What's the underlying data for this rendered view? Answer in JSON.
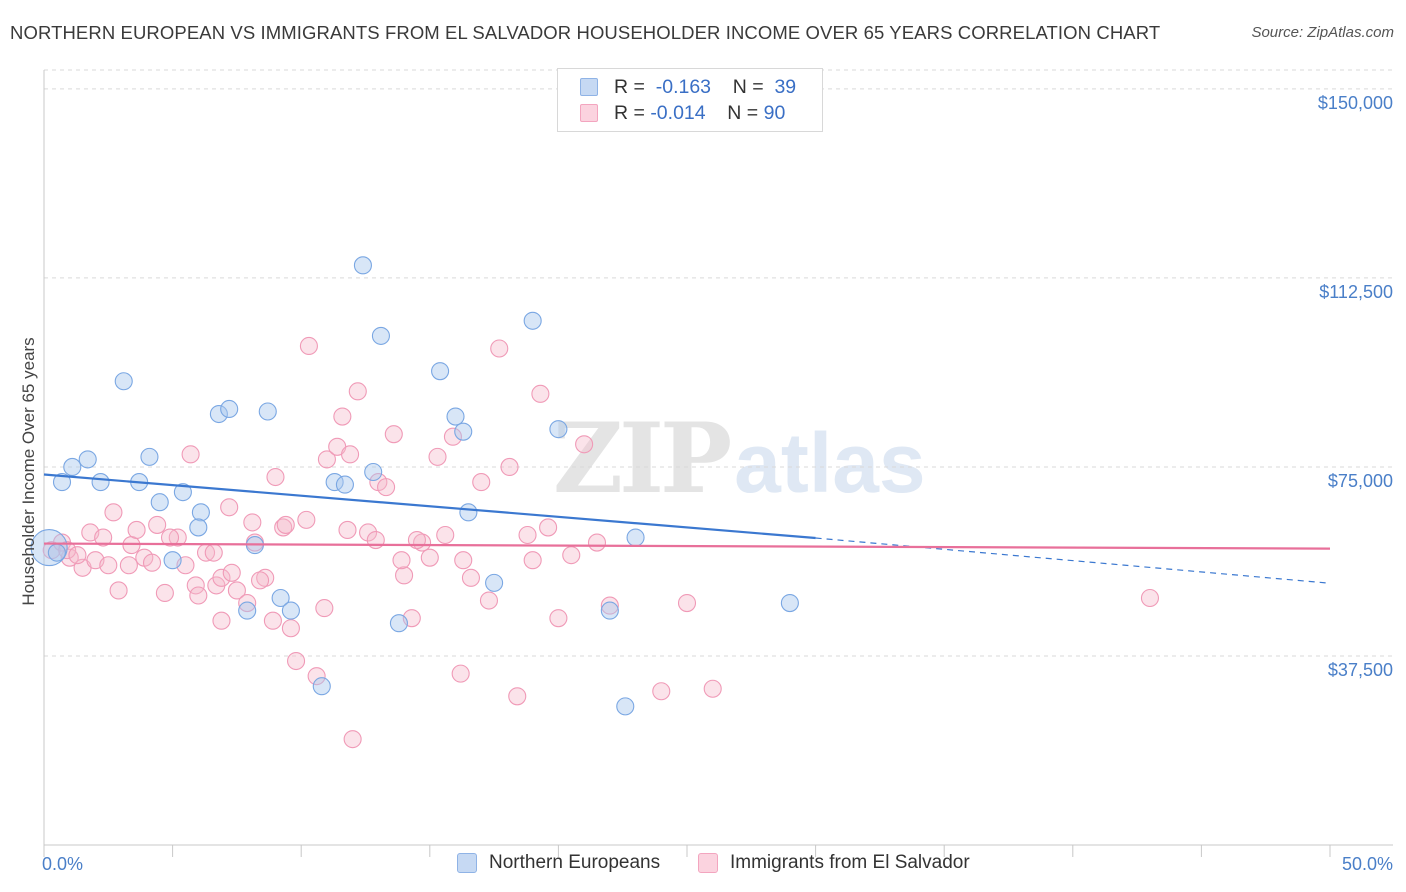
{
  "title": "NORTHERN EUROPEAN VS IMMIGRANTS FROM EL SALVADOR HOUSEHOLDER INCOME OVER 65 YEARS CORRELATION CHART",
  "source": "Source: ZipAtlas.com",
  "watermark": {
    "zip": "ZIP",
    "atlas": "atlas"
  },
  "legend": {
    "r_label": "R =",
    "n_label": "N =",
    "rows": [
      {
        "r": "-0.163",
        "n": "39",
        "color": "#a9c7ee"
      },
      {
        "r": "-0.014",
        "n": "90",
        "color": "#f5b8cb"
      }
    ]
  },
  "bottom_legend": [
    "Northern Europeans",
    "Immigrants from El Salvador"
  ],
  "chart_data": {
    "type": "scatter",
    "title": "NORTHERN EUROPEAN VS IMMIGRANTS FROM EL SALVADOR HOUSEHOLDER INCOME OVER 65 YEARS CORRELATION CHART",
    "xlabel": "",
    "ylabel": "Householder Income Over 65 years",
    "xlim": [
      0,
      50
    ],
    "ylim": [
      0,
      153750
    ],
    "x_tick_labels": [
      "0.0%",
      "50.0%"
    ],
    "y_ticks": [
      37500,
      75000,
      112500,
      150000
    ],
    "y_tick_labels": [
      "$37,500",
      "$75,000",
      "$112,500",
      "$150,000"
    ],
    "grid": "horizontal dashed",
    "legend_position": "top-center",
    "series": [
      {
        "name": "Northern Europeans",
        "color": "#6a9ee0",
        "trend": {
          "x0": 0,
          "y0": 73500,
          "x1": 30,
          "y1": 60900,
          "dashed_to_x": 50,
          "dashed_to_y": 52000
        },
        "points": [
          [
            0.2,
            59000,
            "large"
          ],
          [
            0.7,
            72000
          ],
          [
            1.1,
            75000
          ],
          [
            1.7,
            76500
          ],
          [
            3.1,
            92000
          ],
          [
            2.2,
            72000
          ],
          [
            3.7,
            72000
          ],
          [
            4.1,
            77000
          ],
          [
            4.5,
            68000
          ],
          [
            5.4,
            70000
          ],
          [
            5.0,
            56500
          ],
          [
            6.1,
            66000
          ],
          [
            6.0,
            63000
          ],
          [
            6.8,
            85500
          ],
          [
            7.2,
            86500
          ],
          [
            8.7,
            86000
          ],
          [
            7.9,
            46500
          ],
          [
            8.2,
            59500
          ],
          [
            9.2,
            49000
          ],
          [
            9.6,
            46500
          ],
          [
            10.8,
            31500
          ],
          [
            11.3,
            72000
          ],
          [
            11.7,
            71500
          ],
          [
            12.4,
            115000
          ],
          [
            12.8,
            74000
          ],
          [
            13.1,
            101000
          ],
          [
            13.8,
            44000
          ],
          [
            15.4,
            94000
          ],
          [
            16.0,
            85000
          ],
          [
            16.3,
            82000
          ],
          [
            16.5,
            66000
          ],
          [
            17.5,
            52000
          ],
          [
            19.0,
            104000
          ],
          [
            20.0,
            82500
          ],
          [
            22.0,
            46500
          ],
          [
            22.6,
            27500
          ],
          [
            23.0,
            61000
          ],
          [
            29.0,
            48000
          ],
          [
            0.5,
            58000
          ]
        ]
      },
      {
        "name": "Immigrants from El Salvador",
        "color": "#f08cad",
        "trend": {
          "x0": 0,
          "y0": 59800,
          "x1": 50,
          "y1": 58800
        },
        "points": [
          [
            0.3,
            58500
          ],
          [
            0.7,
            60000
          ],
          [
            1.0,
            57000
          ],
          [
            1.5,
            55000
          ],
          [
            1.8,
            62000
          ],
          [
            2.0,
            56500
          ],
          [
            2.3,
            61000
          ],
          [
            2.7,
            66000
          ],
          [
            2.9,
            50500
          ],
          [
            3.3,
            55500
          ],
          [
            3.4,
            59500
          ],
          [
            3.9,
            57000
          ],
          [
            4.2,
            56000
          ],
          [
            4.4,
            63500
          ],
          [
            4.7,
            50000
          ],
          [
            5.2,
            61000
          ],
          [
            5.5,
            55500
          ],
          [
            5.9,
            51500
          ],
          [
            6.0,
            49500
          ],
          [
            6.3,
            58000
          ],
          [
            6.7,
            51500
          ],
          [
            6.9,
            53000
          ],
          [
            7.2,
            67000
          ],
          [
            7.5,
            50500
          ],
          [
            7.9,
            48000
          ],
          [
            8.2,
            60000
          ],
          [
            8.6,
            53000
          ],
          [
            8.9,
            44500
          ],
          [
            9.0,
            73000
          ],
          [
            9.3,
            63000
          ],
          [
            9.6,
            43000
          ],
          [
            9.8,
            36500
          ],
          [
            10.3,
            99000
          ],
          [
            10.6,
            33500
          ],
          [
            11.0,
            76500
          ],
          [
            11.4,
            79000
          ],
          [
            11.6,
            85000
          ],
          [
            11.9,
            77500
          ],
          [
            12.2,
            90000
          ],
          [
            12.6,
            62000
          ],
          [
            13.0,
            72000
          ],
          [
            13.3,
            71000
          ],
          [
            13.6,
            81500
          ],
          [
            14.0,
            53500
          ],
          [
            14.3,
            45000
          ],
          [
            14.7,
            60000
          ],
          [
            15.0,
            57000
          ],
          [
            15.3,
            77000
          ],
          [
            15.6,
            61500
          ],
          [
            15.9,
            81000
          ],
          [
            16.3,
            56500
          ],
          [
            16.6,
            53000
          ],
          [
            17.0,
            72000
          ],
          [
            17.3,
            48500
          ],
          [
            17.7,
            98500
          ],
          [
            18.1,
            75000
          ],
          [
            18.4,
            29500
          ],
          [
            19.0,
            56500
          ],
          [
            19.3,
            89500
          ],
          [
            19.6,
            63000
          ],
          [
            20.0,
            45000
          ],
          [
            20.5,
            57500
          ],
          [
            21.0,
            79500
          ],
          [
            21.5,
            60000
          ],
          [
            22.0,
            47500
          ],
          [
            24.0,
            30500
          ],
          [
            25.0,
            48000
          ],
          [
            26.0,
            31000
          ],
          [
            43.0,
            49000
          ],
          [
            12.0,
            21000
          ],
          [
            3.6,
            62500
          ],
          [
            4.9,
            61000
          ],
          [
            6.6,
            58000
          ],
          [
            7.3,
            54000
          ],
          [
            8.1,
            64000
          ],
          [
            9.4,
            63500
          ],
          [
            10.2,
            64500
          ],
          [
            11.8,
            62500
          ],
          [
            13.9,
            56500
          ],
          [
            16.2,
            34000
          ],
          [
            0.9,
            58500
          ],
          [
            1.3,
            57500
          ],
          [
            2.5,
            55500
          ],
          [
            5.7,
            77500
          ],
          [
            6.9,
            44500
          ],
          [
            8.4,
            52500
          ],
          [
            10.9,
            47000
          ],
          [
            12.9,
            60500
          ],
          [
            14.5,
            60500
          ],
          [
            18.8,
            61500
          ]
        ]
      }
    ]
  }
}
